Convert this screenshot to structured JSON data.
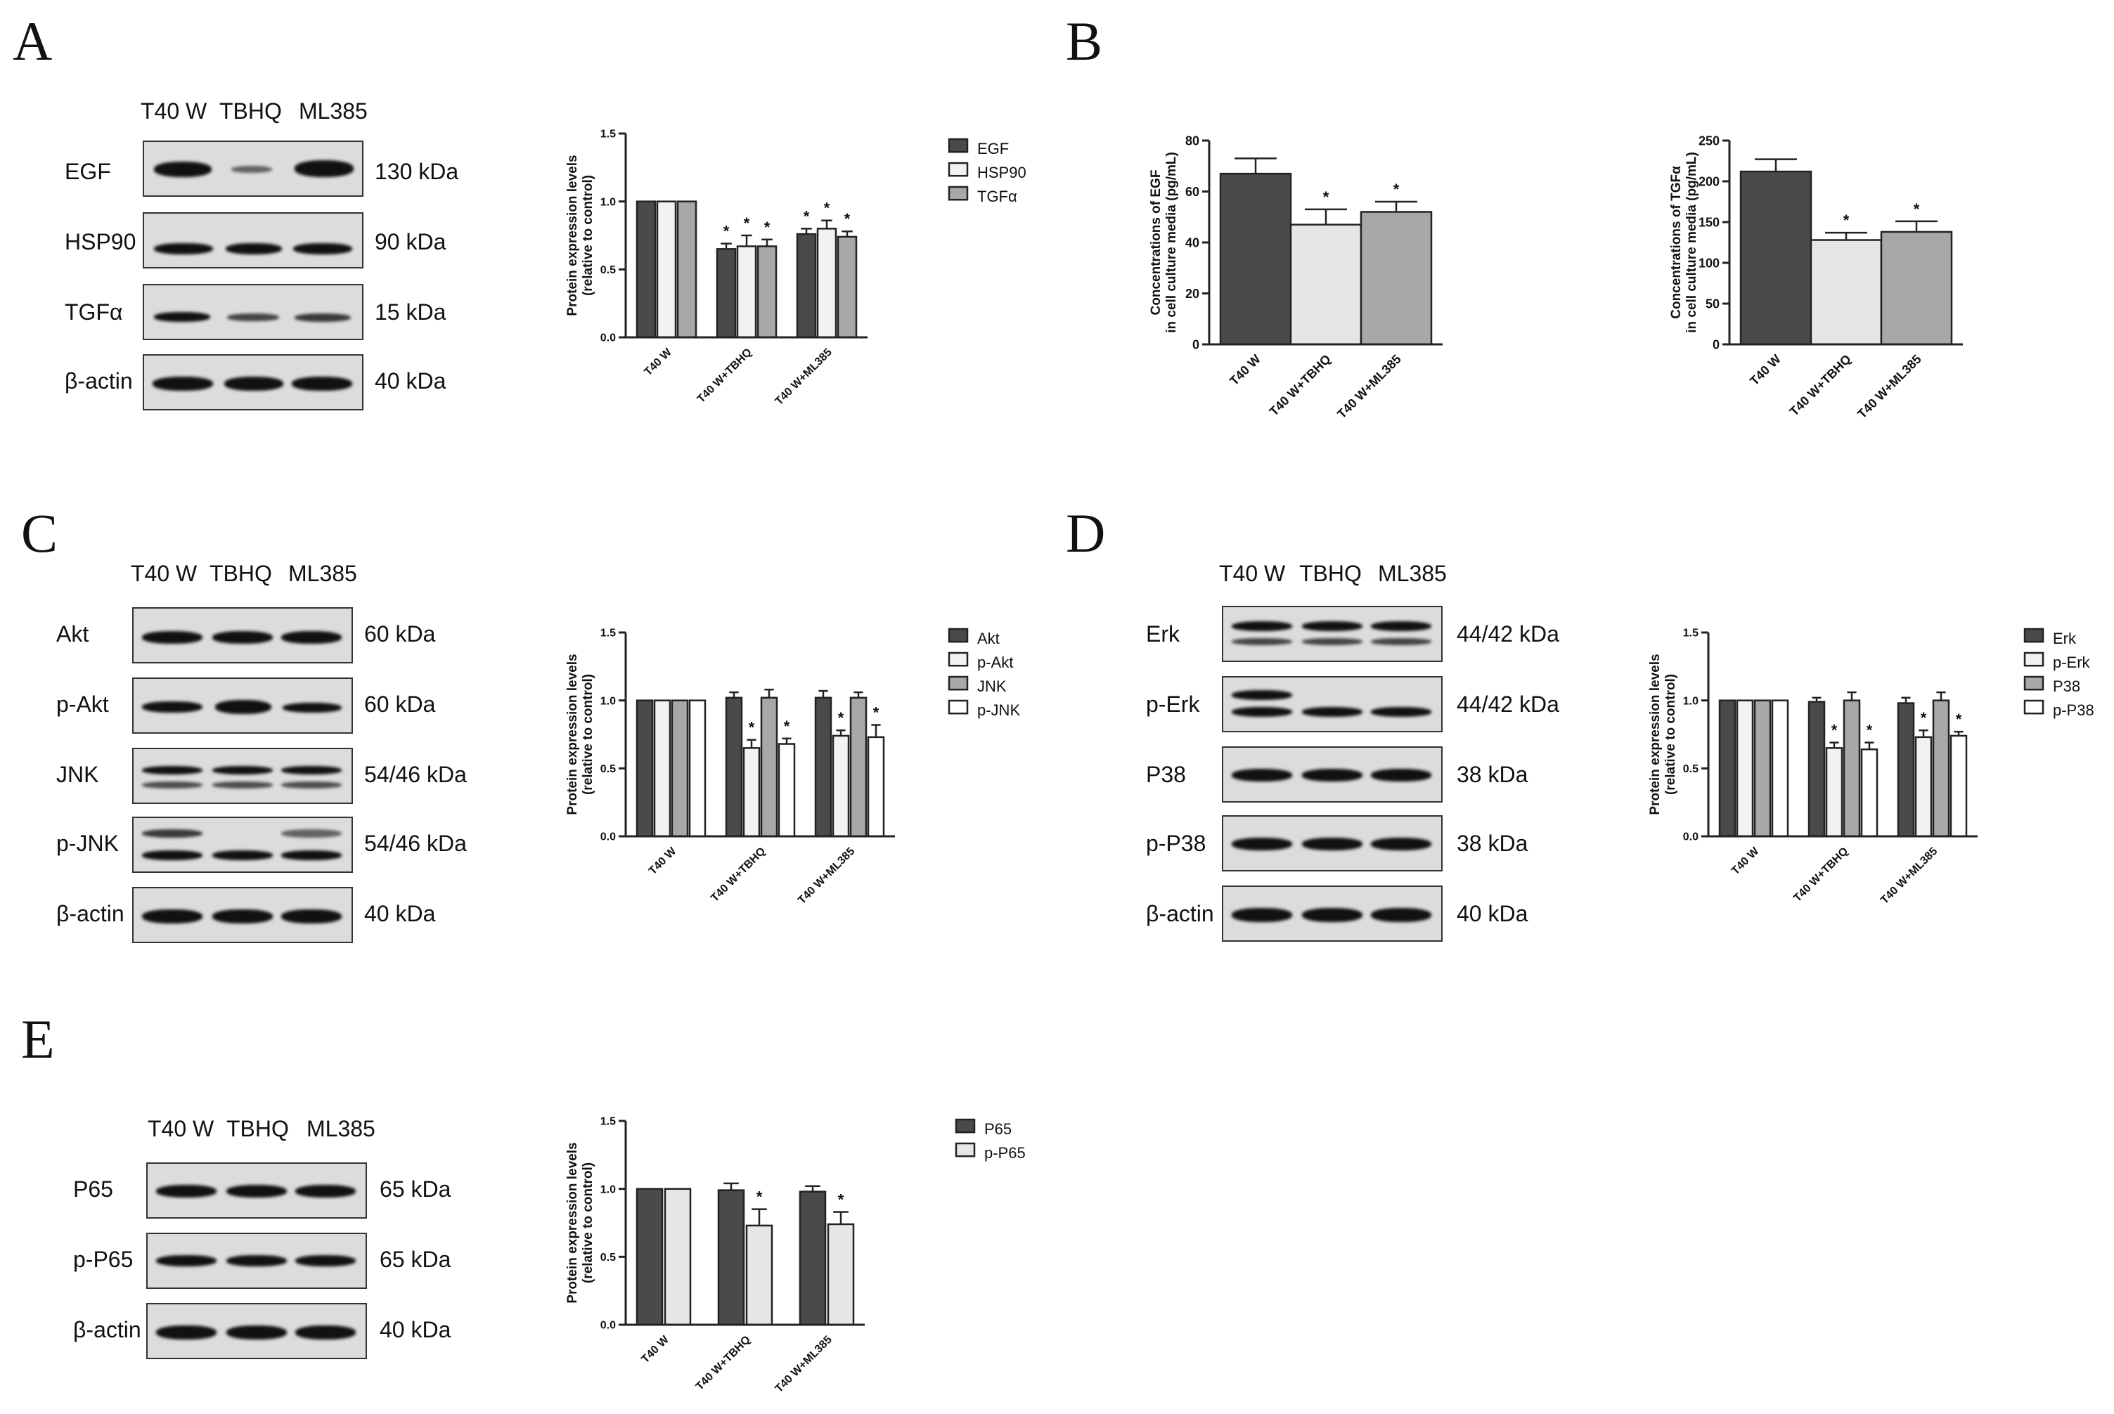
{
  "panels": {
    "A": {
      "letter": "A",
      "lanes": [
        "T40 W",
        "TBHQ",
        "ML385"
      ],
      "rows": [
        {
          "protein": "EGF",
          "kda": "130 kDa"
        },
        {
          "protein": "HSP90",
          "kda": "90 kDa"
        },
        {
          "protein": "TGFα",
          "kda": "15 kDa"
        },
        {
          "protein": "β-actin",
          "kda": "40 kDa"
        }
      ]
    },
    "B": {
      "letter": "B"
    },
    "C": {
      "letter": "C",
      "lanes": [
        "T40 W",
        "TBHQ",
        "ML385"
      ],
      "rows": [
        {
          "protein": "Akt",
          "kda": "60 kDa"
        },
        {
          "protein": "p-Akt",
          "kda": "60 kDa"
        },
        {
          "protein": "JNK",
          "kda": "54/46 kDa"
        },
        {
          "protein": "p-JNK",
          "kda": "54/46 kDa"
        },
        {
          "protein": "β-actin",
          "kda": "40 kDa"
        }
      ]
    },
    "D": {
      "letter": "D",
      "lanes": [
        "T40 W",
        "TBHQ",
        "ML385"
      ],
      "rows": [
        {
          "protein": "Erk",
          "kda": "44/42 kDa"
        },
        {
          "protein": "p-Erk",
          "kda": "44/42 kDa"
        },
        {
          "protein": "P38",
          "kda": "38 kDa"
        },
        {
          "protein": "p-P38",
          "kda": "38 kDa"
        },
        {
          "protein": "β-actin",
          "kda": "40 kDa"
        }
      ]
    },
    "E": {
      "letter": "E",
      "lanes": [
        "T40 W",
        "TBHQ",
        "ML385"
      ],
      "rows": [
        {
          "protein": "P65",
          "kda": "65 kDa"
        },
        {
          "protein": "p-P65",
          "kda": "65 kDa"
        },
        {
          "protein": "β-actin",
          "kda": "40 kDa"
        }
      ]
    }
  },
  "chart_data": [
    {
      "id": "A",
      "type": "bar",
      "ylabel": [
        "Protein expression levels",
        "(relative to control)"
      ],
      "ylim": [
        0,
        1.5
      ],
      "yticks": [
        "0.0",
        "0.5",
        "1.0",
        "1.5"
      ],
      "categories": [
        "T40 W",
        "T40 W+TBHQ",
        "T40 W+ML385"
      ],
      "legend_position": "top-right",
      "series": [
        {
          "name": "EGF",
          "color": "#4a4a4a",
          "values": [
            1.0,
            0.65,
            0.76
          ],
          "errors": [
            0,
            0.04,
            0.04
          ],
          "sig": [
            false,
            true,
            true
          ]
        },
        {
          "name": "HSP90",
          "color": "#f2f2f2",
          "values": [
            1.0,
            0.67,
            0.8
          ],
          "errors": [
            0,
            0.08,
            0.06
          ],
          "sig": [
            false,
            true,
            true
          ]
        },
        {
          "name": "TGFα",
          "color": "#a8a8a8",
          "values": [
            1.0,
            0.67,
            0.74
          ],
          "errors": [
            0,
            0.05,
            0.04
          ],
          "sig": [
            false,
            true,
            true
          ]
        }
      ],
      "sig_mark": "*"
    },
    {
      "id": "B1",
      "type": "bar",
      "ylabel": [
        "Concentrations of EGF",
        "in cell culture media (pg/mL)"
      ],
      "ylim": [
        0,
        80
      ],
      "yticks": [
        "0",
        "20",
        "40",
        "60",
        "80"
      ],
      "categories": [
        "T40 W",
        "T40 W+TBHQ",
        "T40 W+ML385"
      ],
      "values": [
        67,
        47,
        52
      ],
      "errors": [
        6,
        6,
        4
      ],
      "colors": [
        "#4a4a4a",
        "#e6e6e6",
        "#a8a8a8"
      ],
      "sig": [
        false,
        true,
        true
      ],
      "sig_mark": "*"
    },
    {
      "id": "B2",
      "type": "bar",
      "ylabel": [
        "Concentrations of TGFα",
        "in cell culture media (pg/mL)"
      ],
      "ylim": [
        0,
        250
      ],
      "yticks": [
        "0",
        "50",
        "100",
        "150",
        "200",
        "250"
      ],
      "categories": [
        "T40 W",
        "T40 W+TBHQ",
        "T40 W+ML385"
      ],
      "values": [
        212,
        128,
        138
      ],
      "errors": [
        15,
        9,
        13
      ],
      "colors": [
        "#4a4a4a",
        "#e6e6e6",
        "#a8a8a8"
      ],
      "sig": [
        false,
        true,
        true
      ],
      "sig_mark": "*"
    },
    {
      "id": "C",
      "type": "bar",
      "ylabel": [
        "Protein expression levels",
        "(relative to control)"
      ],
      "ylim": [
        0,
        1.5
      ],
      "yticks": [
        "0.0",
        "0.5",
        "1.0",
        "1.5"
      ],
      "categories": [
        "T40 W",
        "T40 W+TBHQ",
        "T40 W+ML385"
      ],
      "legend_position": "top-right",
      "series": [
        {
          "name": "Akt",
          "color": "#4a4a4a",
          "values": [
            1.0,
            1.02,
            1.02
          ],
          "errors": [
            0,
            0.04,
            0.05
          ],
          "sig": [
            false,
            false,
            false
          ]
        },
        {
          "name": "p-Akt",
          "color": "#f2f2f2",
          "values": [
            1.0,
            0.65,
            0.74
          ],
          "errors": [
            0,
            0.06,
            0.04
          ],
          "sig": [
            false,
            true,
            true
          ]
        },
        {
          "name": "JNK",
          "color": "#a8a8a8",
          "values": [
            1.0,
            1.02,
            1.02
          ],
          "errors": [
            0,
            0.06,
            0.04
          ],
          "sig": [
            false,
            false,
            false
          ]
        },
        {
          "name": "p-JNK",
          "color": "#ffffff",
          "values": [
            1.0,
            0.68,
            0.73
          ],
          "errors": [
            0,
            0.04,
            0.09
          ],
          "sig": [
            false,
            true,
            true
          ]
        }
      ],
      "sig_mark": "*"
    },
    {
      "id": "D",
      "type": "bar",
      "ylabel": [
        "Protein expression levels",
        "(relative to control)"
      ],
      "ylim": [
        0,
        1.5
      ],
      "yticks": [
        "0.0",
        "0.5",
        "1.0",
        "1.5"
      ],
      "categories": [
        "T40 W",
        "T40 W+TBHQ",
        "T40 W+ML385"
      ],
      "legend_position": "top-right",
      "series": [
        {
          "name": "Erk",
          "color": "#4a4a4a",
          "values": [
            1.0,
            0.99,
            0.98
          ],
          "errors": [
            0,
            0.03,
            0.04
          ],
          "sig": [
            false,
            false,
            false
          ]
        },
        {
          "name": "p-Erk",
          "color": "#f2f2f2",
          "values": [
            1.0,
            0.65,
            0.73
          ],
          "errors": [
            0,
            0.04,
            0.05
          ],
          "sig": [
            false,
            true,
            true
          ]
        },
        {
          "name": "P38",
          "color": "#a8a8a8",
          "values": [
            1.0,
            1.0,
            1.0
          ],
          "errors": [
            0,
            0.06,
            0.06
          ],
          "sig": [
            false,
            false,
            false
          ]
        },
        {
          "name": "p-P38",
          "color": "#ffffff",
          "values": [
            1.0,
            0.64,
            0.74
          ],
          "errors": [
            0,
            0.05,
            0.03
          ],
          "sig": [
            false,
            true,
            true
          ]
        }
      ],
      "sig_mark": "*"
    },
    {
      "id": "E",
      "type": "bar",
      "ylabel": [
        "Protein expression levels",
        "(relative to control)"
      ],
      "ylim": [
        0,
        1.5
      ],
      "yticks": [
        "0.0",
        "0.5",
        "1.0",
        "1.5"
      ],
      "categories": [
        "T40 W",
        "T40 W+TBHQ",
        "T40 W+ML385"
      ],
      "legend_position": "top-right",
      "series": [
        {
          "name": "P65",
          "color": "#4a4a4a",
          "values": [
            1.0,
            0.99,
            0.98
          ],
          "errors": [
            0,
            0.05,
            0.04
          ],
          "sig": [
            false,
            false,
            false
          ]
        },
        {
          "name": "p-P65",
          "color": "#e6e6e6",
          "values": [
            1.0,
            0.73,
            0.74
          ],
          "errors": [
            0,
            0.12,
            0.09
          ],
          "sig": [
            false,
            true,
            true
          ]
        }
      ],
      "sig_mark": "*"
    }
  ]
}
